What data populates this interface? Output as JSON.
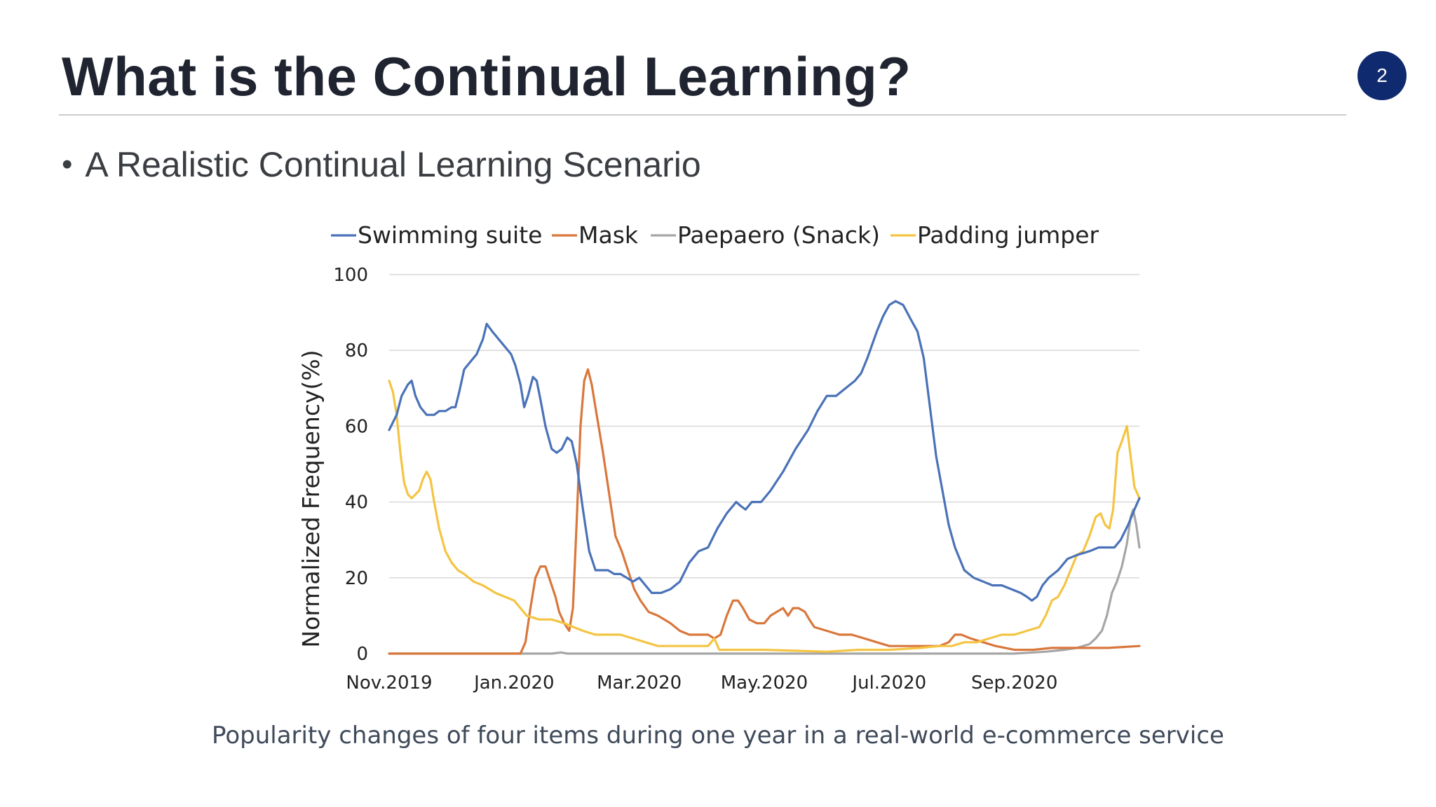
{
  "slide": {
    "title": "What is the Continual Learning?",
    "page_number": "2",
    "bullet": "A Realistic Continual Learning Scenario",
    "bullet_marker": "•",
    "caption": "Popularity changes of four items during one year in a real-world e-commerce service"
  },
  "colors": {
    "title": "#1f2430",
    "badge": "#0f2a6e",
    "grid": "#d9d9d9"
  },
  "chart_data": {
    "type": "line",
    "title": "",
    "xlabel": "",
    "ylabel": "Normalized Frequency(%)",
    "ylim": [
      0,
      100
    ],
    "yticks": [
      0,
      20,
      40,
      60,
      80,
      100
    ],
    "xlim": [
      0,
      12
    ],
    "x_tick_positions": [
      0,
      2,
      4,
      6,
      8,
      10
    ],
    "x_tick_labels": [
      "Nov.2019",
      "Jan.2020",
      "Mar.2020",
      "May.2020",
      "Jul.2020",
      "Sep.2020"
    ],
    "grid": "horizontal",
    "legend_position": "top",
    "series": [
      {
        "name": "Swimming suite",
        "color": "#4a72b8",
        "points": [
          [
            0,
            59
          ],
          [
            0.12,
            63
          ],
          [
            0.2,
            68
          ],
          [
            0.3,
            71
          ],
          [
            0.36,
            72
          ],
          [
            0.42,
            68
          ],
          [
            0.5,
            65
          ],
          [
            0.6,
            63
          ],
          [
            0.72,
            63
          ],
          [
            0.8,
            64
          ],
          [
            0.9,
            64
          ],
          [
            1.0,
            65
          ],
          [
            1.06,
            65
          ],
          [
            1.12,
            69
          ],
          [
            1.2,
            75
          ],
          [
            1.3,
            77
          ],
          [
            1.4,
            79
          ],
          [
            1.5,
            83
          ],
          [
            1.56,
            87
          ],
          [
            1.65,
            85
          ],
          [
            1.75,
            83
          ],
          [
            1.85,
            81
          ],
          [
            1.95,
            79
          ],
          [
            2.02,
            76
          ],
          [
            2.1,
            71
          ],
          [
            2.16,
            65
          ],
          [
            2.22,
            68
          ],
          [
            2.3,
            73
          ],
          [
            2.36,
            72
          ],
          [
            2.42,
            67
          ],
          [
            2.5,
            60
          ],
          [
            2.6,
            54
          ],
          [
            2.68,
            53
          ],
          [
            2.76,
            54
          ],
          [
            2.85,
            57
          ],
          [
            2.92,
            56
          ],
          [
            3.0,
            50
          ],
          [
            3.1,
            38
          ],
          [
            3.2,
            27
          ],
          [
            3.3,
            22
          ],
          [
            3.4,
            22
          ],
          [
            3.5,
            22
          ],
          [
            3.6,
            21
          ],
          [
            3.7,
            21
          ],
          [
            3.8,
            20
          ],
          [
            3.9,
            19
          ],
          [
            4.0,
            20
          ],
          [
            4.1,
            18
          ],
          [
            4.2,
            16
          ],
          [
            4.35,
            16
          ],
          [
            4.5,
            17
          ],
          [
            4.65,
            19
          ],
          [
            4.8,
            24
          ],
          [
            4.95,
            27
          ],
          [
            5.1,
            28
          ],
          [
            5.25,
            33
          ],
          [
            5.4,
            37
          ],
          [
            5.55,
            40
          ],
          [
            5.62,
            39
          ],
          [
            5.7,
            38
          ],
          [
            5.8,
            40
          ],
          [
            5.95,
            40
          ],
          [
            6.1,
            43
          ],
          [
            6.3,
            48
          ],
          [
            6.5,
            54
          ],
          [
            6.7,
            59
          ],
          [
            6.85,
            64
          ],
          [
            7.0,
            68
          ],
          [
            7.15,
            68
          ],
          [
            7.3,
            70
          ],
          [
            7.45,
            72
          ],
          [
            7.55,
            74
          ],
          [
            7.65,
            78
          ],
          [
            7.8,
            85
          ],
          [
            7.9,
            89
          ],
          [
            8.0,
            92
          ],
          [
            8.1,
            93
          ],
          [
            8.22,
            92
          ],
          [
            8.35,
            88
          ],
          [
            8.45,
            85
          ],
          [
            8.55,
            78
          ],
          [
            8.65,
            65
          ],
          [
            8.75,
            52
          ],
          [
            8.85,
            43
          ],
          [
            8.95,
            34
          ],
          [
            9.05,
            28
          ],
          [
            9.2,
            22
          ],
          [
            9.35,
            20
          ],
          [
            9.5,
            19
          ],
          [
            9.65,
            18
          ],
          [
            9.8,
            18
          ],
          [
            9.95,
            17
          ],
          [
            10.1,
            16
          ],
          [
            10.2,
            15
          ],
          [
            10.28,
            14
          ],
          [
            10.36,
            15
          ],
          [
            10.45,
            18
          ],
          [
            10.55,
            20
          ],
          [
            10.7,
            22
          ],
          [
            10.85,
            25
          ],
          [
            11.0,
            26
          ],
          [
            11.2,
            27
          ],
          [
            11.35,
            28
          ],
          [
            11.5,
            28
          ],
          [
            11.6,
            28
          ],
          [
            11.7,
            30
          ],
          [
            11.82,
            34
          ],
          [
            11.92,
            38
          ],
          [
            12.0,
            41
          ]
        ]
      },
      {
        "name": "Mask",
        "color": "#d9773c",
        "points": [
          [
            0,
            0
          ],
          [
            0.6,
            0
          ],
          [
            1.0,
            0
          ],
          [
            1.5,
            0
          ],
          [
            2.0,
            0
          ],
          [
            2.1,
            0
          ],
          [
            2.18,
            3
          ],
          [
            2.26,
            12
          ],
          [
            2.34,
            20
          ],
          [
            2.42,
            23
          ],
          [
            2.5,
            23
          ],
          [
            2.58,
            19
          ],
          [
            2.66,
            15
          ],
          [
            2.72,
            11
          ],
          [
            2.8,
            8
          ],
          [
            2.88,
            6
          ],
          [
            2.94,
            12
          ],
          [
            3.0,
            35
          ],
          [
            3.06,
            60
          ],
          [
            3.12,
            72
          ],
          [
            3.18,
            75
          ],
          [
            3.24,
            71
          ],
          [
            3.32,
            63
          ],
          [
            3.42,
            53
          ],
          [
            3.52,
            42
          ],
          [
            3.62,
            31
          ],
          [
            3.72,
            27
          ],
          [
            3.82,
            22
          ],
          [
            3.92,
            17
          ],
          [
            4.02,
            14
          ],
          [
            4.15,
            11
          ],
          [
            4.3,
            10
          ],
          [
            4.5,
            8
          ],
          [
            4.65,
            6
          ],
          [
            4.8,
            5
          ],
          [
            4.95,
            5
          ],
          [
            5.1,
            5
          ],
          [
            5.2,
            4
          ],
          [
            5.3,
            5
          ],
          [
            5.4,
            10
          ],
          [
            5.5,
            14
          ],
          [
            5.58,
            14
          ],
          [
            5.66,
            12
          ],
          [
            5.76,
            9
          ],
          [
            5.88,
            8
          ],
          [
            6.0,
            8
          ],
          [
            6.1,
            10
          ],
          [
            6.2,
            11
          ],
          [
            6.3,
            12
          ],
          [
            6.38,
            10
          ],
          [
            6.46,
            12
          ],
          [
            6.55,
            12
          ],
          [
            6.65,
            11
          ],
          [
            6.72,
            9
          ],
          [
            6.8,
            7
          ],
          [
            7.0,
            6
          ],
          [
            7.2,
            5
          ],
          [
            7.4,
            5
          ],
          [
            7.6,
            4
          ],
          [
            7.8,
            3
          ],
          [
            8.0,
            2
          ],
          [
            8.3,
            2
          ],
          [
            8.6,
            2
          ],
          [
            8.8,
            2
          ],
          [
            8.95,
            3
          ],
          [
            9.05,
            5
          ],
          [
            9.15,
            5
          ],
          [
            9.3,
            4
          ],
          [
            9.5,
            3
          ],
          [
            9.7,
            2
          ],
          [
            10.0,
            1
          ],
          [
            10.3,
            1
          ],
          [
            10.6,
            1.5
          ],
          [
            11.0,
            1.5
          ],
          [
            11.5,
            1.5
          ],
          [
            12.0,
            2
          ]
        ]
      },
      {
        "name": "Paepaero (Snack)",
        "color": "#a6a6a6",
        "points": [
          [
            0,
            0
          ],
          [
            2.6,
            0
          ],
          [
            2.75,
            0.3
          ],
          [
            2.85,
            0
          ],
          [
            5.0,
            0
          ],
          [
            8.0,
            0
          ],
          [
            10.0,
            0
          ],
          [
            10.5,
            0.5
          ],
          [
            10.8,
            1
          ],
          [
            11.0,
            1.5
          ],
          [
            11.2,
            2.5
          ],
          [
            11.3,
            4
          ],
          [
            11.4,
            6
          ],
          [
            11.48,
            10
          ],
          [
            11.56,
            16
          ],
          [
            11.64,
            19
          ],
          [
            11.72,
            23
          ],
          [
            11.8,
            29
          ],
          [
            11.86,
            36
          ],
          [
            11.9,
            38
          ],
          [
            11.95,
            34
          ],
          [
            12.0,
            28
          ]
        ]
      },
      {
        "name": "Padding jumper",
        "color": "#f4c442",
        "points": [
          [
            0,
            72
          ],
          [
            0.06,
            69
          ],
          [
            0.12,
            63
          ],
          [
            0.18,
            53
          ],
          [
            0.24,
            45
          ],
          [
            0.3,
            42
          ],
          [
            0.36,
            41
          ],
          [
            0.42,
            42
          ],
          [
            0.48,
            43
          ],
          [
            0.54,
            46
          ],
          [
            0.6,
            48
          ],
          [
            0.66,
            46
          ],
          [
            0.72,
            40
          ],
          [
            0.8,
            33
          ],
          [
            0.9,
            27
          ],
          [
            1.0,
            24
          ],
          [
            1.1,
            22
          ],
          [
            1.2,
            21
          ],
          [
            1.35,
            19
          ],
          [
            1.5,
            18
          ],
          [
            1.6,
            17
          ],
          [
            1.7,
            16
          ],
          [
            1.85,
            15
          ],
          [
            2.0,
            14
          ],
          [
            2.1,
            12
          ],
          [
            2.2,
            10
          ],
          [
            2.4,
            9
          ],
          [
            2.6,
            9
          ],
          [
            2.8,
            8
          ],
          [
            2.95,
            7
          ],
          [
            3.1,
            6
          ],
          [
            3.3,
            5
          ],
          [
            3.5,
            5
          ],
          [
            3.7,
            5
          ],
          [
            3.9,
            4
          ],
          [
            4.1,
            3
          ],
          [
            4.3,
            2
          ],
          [
            4.6,
            2
          ],
          [
            4.9,
            2
          ],
          [
            5.1,
            2
          ],
          [
            5.2,
            4
          ],
          [
            5.28,
            1
          ],
          [
            5.5,
            1
          ],
          [
            6.0,
            1
          ],
          [
            7.0,
            0.5
          ],
          [
            7.5,
            1
          ],
          [
            8.0,
            1
          ],
          [
            8.5,
            1.5
          ],
          [
            8.8,
            2
          ],
          [
            9.0,
            2
          ],
          [
            9.2,
            3
          ],
          [
            9.4,
            3
          ],
          [
            9.6,
            4
          ],
          [
            9.8,
            5
          ],
          [
            10.0,
            5
          ],
          [
            10.2,
            6
          ],
          [
            10.4,
            7
          ],
          [
            10.5,
            10
          ],
          [
            10.6,
            14
          ],
          [
            10.7,
            15
          ],
          [
            10.8,
            18
          ],
          [
            10.9,
            22
          ],
          [
            11.0,
            26
          ],
          [
            11.1,
            27
          ],
          [
            11.2,
            31
          ],
          [
            11.3,
            36
          ],
          [
            11.38,
            37
          ],
          [
            11.45,
            34
          ],
          [
            11.52,
            33
          ],
          [
            11.58,
            38
          ],
          [
            11.65,
            53
          ],
          [
            11.72,
            56
          ],
          [
            11.8,
            60
          ],
          [
            11.86,
            52
          ],
          [
            11.92,
            44
          ],
          [
            12.0,
            41
          ]
        ]
      }
    ]
  }
}
